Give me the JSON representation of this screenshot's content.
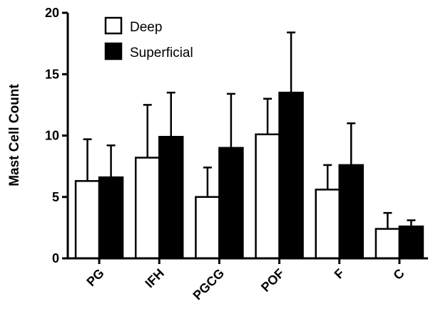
{
  "chart_data": {
    "type": "bar",
    "ylabel": "Mast Cell Count",
    "xlabel": "",
    "ylim": [
      0,
      20
    ],
    "yticks": [
      "0",
      "5",
      "10",
      "15",
      "20"
    ],
    "categories": [
      "PG",
      "IFH",
      "PGCG",
      "POF",
      "F",
      "C"
    ],
    "series": [
      {
        "name": "Deep",
        "fill": "#ffffff",
        "values": [
          6.3,
          8.2,
          5.0,
          10.1,
          5.6,
          2.4
        ],
        "error_upper": [
          9.7,
          12.5,
          7.4,
          13.0,
          7.6,
          3.7
        ]
      },
      {
        "name": "Superficial",
        "fill": "#000000",
        "values": [
          6.6,
          9.9,
          9.0,
          13.5,
          7.6,
          2.6
        ],
        "error_upper": [
          9.2,
          13.5,
          13.4,
          18.4,
          11.0,
          3.1
        ]
      }
    ],
    "legend_position": "top-left",
    "grid": false
  }
}
